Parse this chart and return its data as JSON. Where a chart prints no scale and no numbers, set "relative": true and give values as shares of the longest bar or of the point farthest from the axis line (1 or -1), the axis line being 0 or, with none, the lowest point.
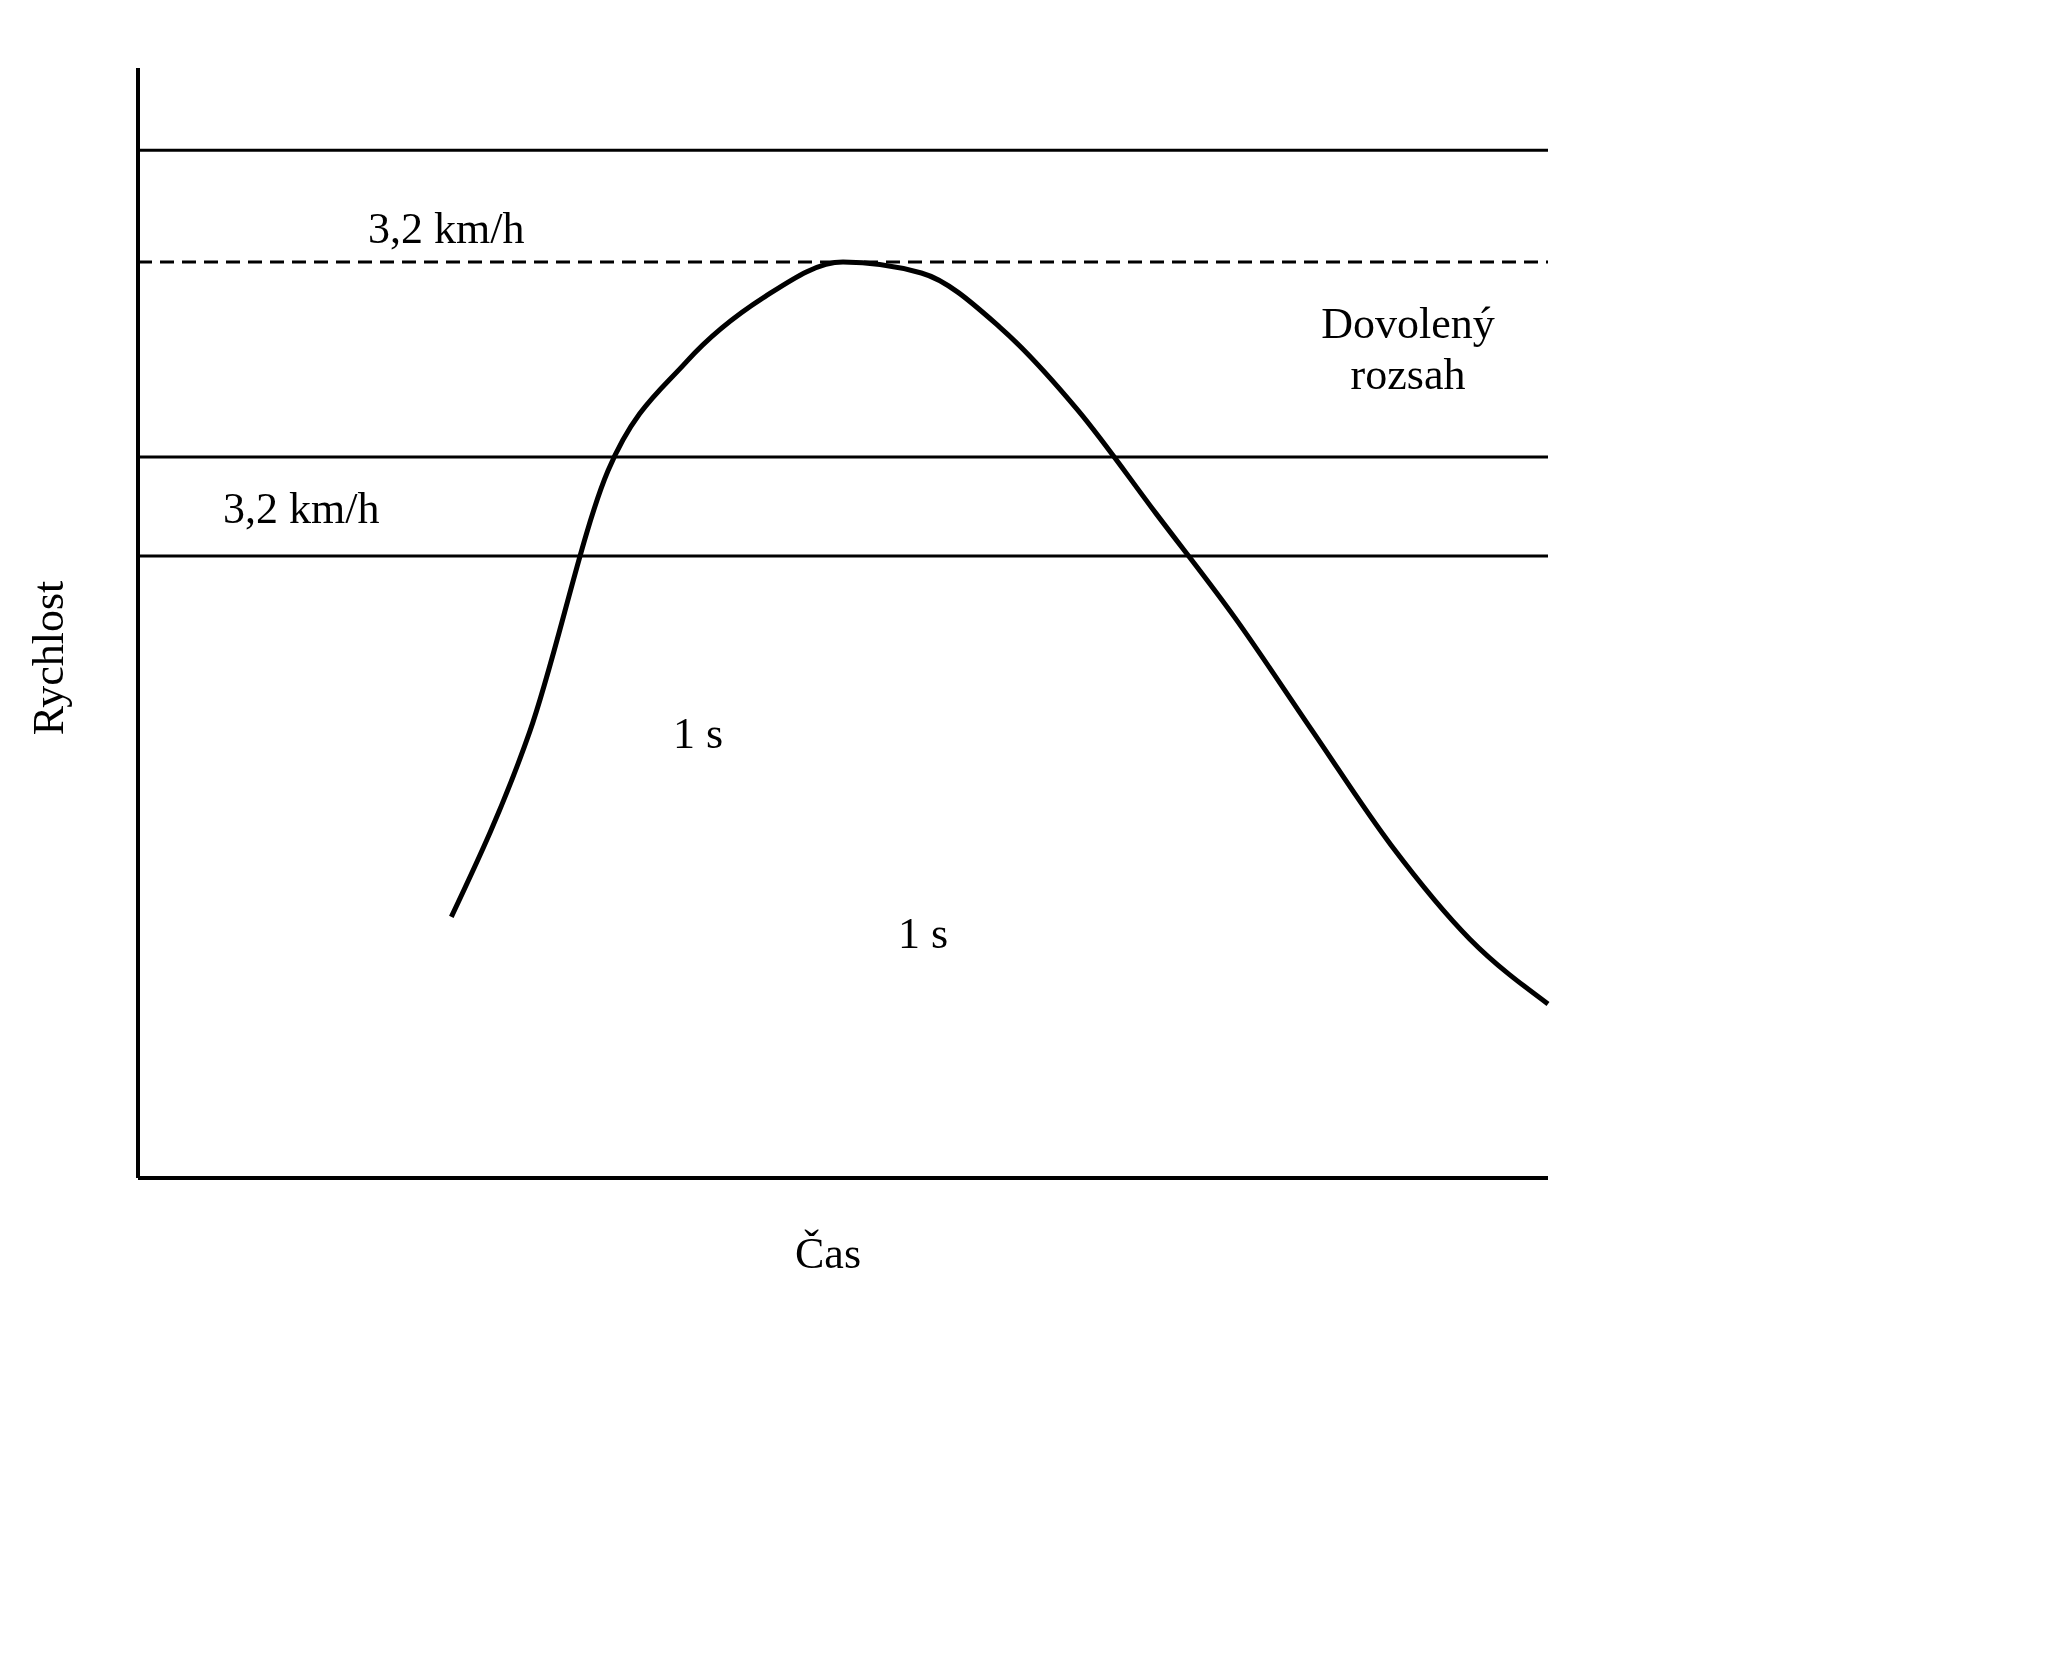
{
  "chart_data": {
    "type": "line",
    "relative": true,
    "xlabel": "Čas",
    "ylabel": "Rychlost",
    "color": "#000000",
    "categories": [
      null,
      null,
      null,
      null,
      null,
      null,
      null,
      null,
      null,
      null,
      null,
      null,
      null,
      null,
      null,
      null,
      null,
      null,
      null
    ],
    "values": [
      null,
      null,
      null,
      null,
      0.285,
      0.487,
      0.772,
      0.891,
      0.962,
      1,
      0.988,
      0.929,
      0.838,
      0.725,
      0.612,
      0.487,
      0.363,
      0.261,
      0.19
    ],
    "ref_lines": [
      {
        "axis": "y",
        "value": 1.122
      },
      {
        "axis": "y",
        "value": 1,
        "line_style": "dashed"
      },
      {
        "axis": "y",
        "value": 0.787
      },
      {
        "axis": "y",
        "value": 0.679
      }
    ],
    "annotations": [
      "3,2 km/h",
      "3,2 km/h",
      "Dovolený rozsah",
      "1 s",
      "1 s"
    ],
    "marker": "none",
    "line_style": "solid"
  }
}
